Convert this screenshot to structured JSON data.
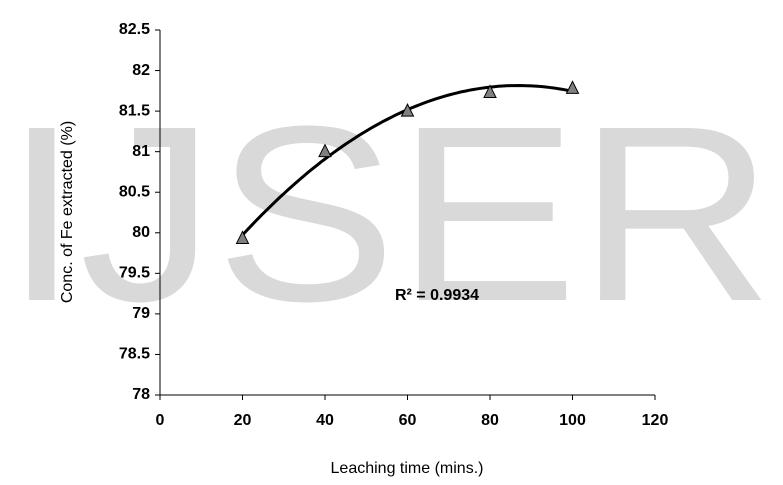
{
  "watermark": "IJSER",
  "chart_data": {
    "type": "scatter",
    "x": [
      20,
      40,
      60,
      80,
      100
    ],
    "values": [
      79.93,
      81.0,
      81.5,
      81.73,
      81.78
    ],
    "marker_color": "#808080",
    "trendline": "polynomial",
    "annotation": "R² = 0.9934",
    "xlabel": "Leaching time (mins.)",
    "ylabel": "Conc. of Fe extracted (%)",
    "xlim": [
      0,
      120
    ],
    "xticks": [
      0,
      20,
      40,
      60,
      80,
      100,
      120
    ],
    "ylim": [
      78,
      82.5
    ],
    "yticks": [
      78,
      78.5,
      79,
      79.5,
      80,
      80.5,
      81,
      81.5,
      82,
      82.5
    ],
    "grid": false
  }
}
